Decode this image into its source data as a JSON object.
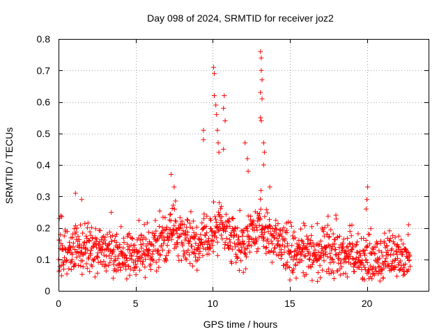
{
  "chart_data": {
    "type": "scatter",
    "title": "Day 098 of 2024, SRMTID for receiver joz2",
    "xlabel": "GPS time / hours",
    "ylabel": "SRMTID / TECUs",
    "xlim": [
      0,
      24
    ],
    "ylim": [
      0,
      0.8
    ],
    "grid": true,
    "marker": "+",
    "color": "#ff0000",
    "x_ticks": [
      0,
      5,
      10,
      15,
      20
    ],
    "x_tick_labels": [
      "0",
      "5",
      "10",
      "15",
      "20"
    ],
    "y_ticks": [
      0,
      0.1,
      0.2,
      0.3,
      0.4,
      0.5,
      0.6,
      0.7,
      0.8
    ],
    "y_tick_labels": [
      "0",
      "0.1",
      "0.2",
      "0.3",
      "0.4",
      "0.5",
      "0.6",
      "0.7",
      "0.8"
    ],
    "series": [
      {
        "name": "SRMTID",
        "x_range": [
          0,
          22.8
        ],
        "approx_points": 1300,
        "trend_hours": [
          0,
          1,
          2,
          3,
          4,
          5,
          6,
          7,
          7.5,
          8,
          9,
          10,
          10.5,
          11,
          12,
          12.5,
          13,
          13.5,
          14,
          15,
          16,
          17,
          18,
          19,
          20,
          21,
          22,
          22.8
        ],
        "trend_values": [
          0.11,
          0.13,
          0.13,
          0.12,
          0.12,
          0.12,
          0.13,
          0.17,
          0.2,
          0.16,
          0.14,
          0.18,
          0.22,
          0.18,
          0.14,
          0.19,
          0.2,
          0.18,
          0.15,
          0.13,
          0.13,
          0.12,
          0.12,
          0.11,
          0.1,
          0.1,
          0.1,
          0.1
        ],
        "notable_points": [
          {
            "x": 0.05,
            "y": 0.23
          },
          {
            "x": 1.1,
            "y": 0.31
          },
          {
            "x": 1.5,
            "y": 0.29
          },
          {
            "x": 7.3,
            "y": 0.37
          },
          {
            "x": 7.5,
            "y": 0.33
          },
          {
            "x": 9.4,
            "y": 0.51
          },
          {
            "x": 9.4,
            "y": 0.48
          },
          {
            "x": 10.05,
            "y": 0.71
          },
          {
            "x": 10.1,
            "y": 0.69
          },
          {
            "x": 10.1,
            "y": 0.62
          },
          {
            "x": 10.2,
            "y": 0.59
          },
          {
            "x": 10.25,
            "y": 0.56
          },
          {
            "x": 10.3,
            "y": 0.51
          },
          {
            "x": 10.35,
            "y": 0.47
          },
          {
            "x": 10.4,
            "y": 0.44
          },
          {
            "x": 10.75,
            "y": 0.62
          },
          {
            "x": 10.7,
            "y": 0.58
          },
          {
            "x": 10.8,
            "y": 0.54
          },
          {
            "x": 10.7,
            "y": 0.45
          },
          {
            "x": 12.1,
            "y": 0.47
          },
          {
            "x": 12.25,
            "y": 0.42
          },
          {
            "x": 12.3,
            "y": 0.38
          },
          {
            "x": 13.1,
            "y": 0.76
          },
          {
            "x": 13.15,
            "y": 0.74
          },
          {
            "x": 13.15,
            "y": 0.7
          },
          {
            "x": 13.2,
            "y": 0.67
          },
          {
            "x": 13.1,
            "y": 0.63
          },
          {
            "x": 13.2,
            "y": 0.61
          },
          {
            "x": 13.1,
            "y": 0.55
          },
          {
            "x": 13.15,
            "y": 0.54
          },
          {
            "x": 13.3,
            "y": 0.47
          },
          {
            "x": 13.35,
            "y": 0.44
          },
          {
            "x": 13.3,
            "y": 0.4
          },
          {
            "x": 13.7,
            "y": 0.33
          },
          {
            "x": 20.05,
            "y": 0.33
          },
          {
            "x": 20.0,
            "y": 0.29
          },
          {
            "x": 19.95,
            "y": 0.26
          },
          {
            "x": 20.1,
            "y": 0.18
          },
          {
            "x": 22.7,
            "y": 0.21
          },
          {
            "x": 16.8,
            "y": 0.03
          }
        ]
      }
    ]
  }
}
